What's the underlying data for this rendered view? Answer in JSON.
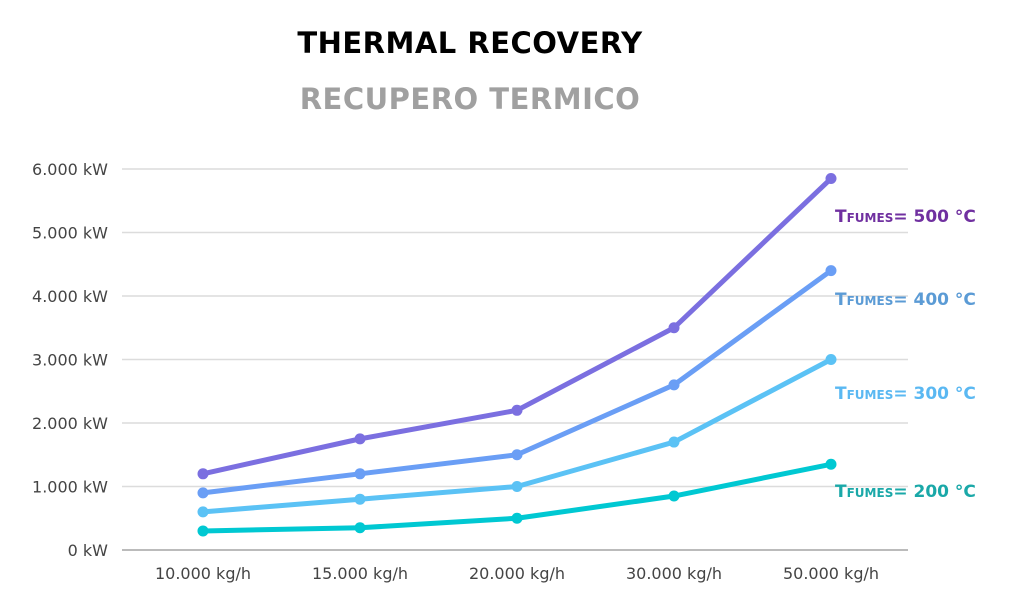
{
  "chart_data": {
    "type": "line",
    "title": "THERMAL RECOVERY",
    "subtitle": "RECUPERO TERMICO",
    "xlabel": "",
    "ylabel": "",
    "categories": [
      "10.000 kg/h",
      "15.000 kg/h",
      "20.000 kg/h",
      "30.000 kg/h",
      "50.000 kg/h"
    ],
    "ylim": [
      0,
      6000
    ],
    "yticks": [
      0,
      1000,
      2000,
      3000,
      4000,
      5000,
      6000
    ],
    "ytick_labels": [
      "0 kW",
      "1.000 kW",
      "2.000 kW",
      "3.000 kW",
      "4.000 kW",
      "5.000 kW",
      "6.000 kW"
    ],
    "grid": true,
    "legend_placement": "right (inline labels)",
    "series": [
      {
        "name": "= 500 °C",
        "label_prefix": "T",
        "label_sub": "FUMES",
        "values": [
          1200,
          1750,
          2200,
          3500,
          5850
        ],
        "line_color": "#7b6fe0",
        "label_color": "#7030a0"
      },
      {
        "name": "= 400 °C",
        "label_prefix": "T",
        "label_sub": "FUMES",
        "values": [
          900,
          1200,
          1500,
          2600,
          4400
        ],
        "line_color": "#6a9ef5",
        "label_color": "#5b9bd5"
      },
      {
        "name": "= 300 °C",
        "label_prefix": "T",
        "label_sub": "FUMES",
        "values": [
          600,
          800,
          1000,
          1700,
          3000
        ],
        "line_color": "#5bc2f5",
        "label_color": "#5ab8f2"
      },
      {
        "name": "= 200 °C",
        "label_prefix": "T",
        "label_sub": "FUMES",
        "values": [
          300,
          350,
          500,
          850,
          1350
        ],
        "line_color": "#00c8d2",
        "label_color": "#1aa8a8"
      }
    ]
  }
}
